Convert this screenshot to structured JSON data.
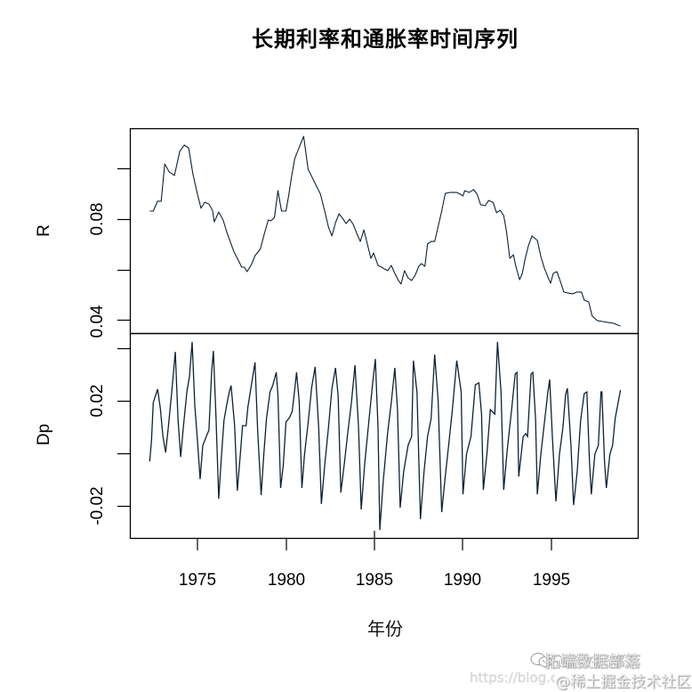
{
  "chart_data": {
    "type": "line",
    "title": "长期利率和通胀率时间序列",
    "xlabel": "年份",
    "x_ticks": [
      1975,
      1980,
      1985,
      1990,
      1995
    ],
    "x_range": [
      1971.3,
      1999.9
    ],
    "panels": [
      {
        "name": "R",
        "ylabel": "R",
        "y_ticks": [
          "0.04",
          "0.08"
        ],
        "y_minor_ticks": [
          0.04,
          0.06,
          0.08,
          0.1
        ],
        "ylim": [
          0.0345,
          0.1155
        ],
        "points": [
          [
            1972.3,
            0.0832
          ],
          [
            1972.5,
            0.0832
          ],
          [
            1972.75,
            0.0871
          ],
          [
            1972.95,
            0.0871
          ],
          [
            1973.15,
            0.1019
          ],
          [
            1973.4,
            0.0988
          ],
          [
            1973.7,
            0.0973
          ],
          [
            1974.0,
            0.1069
          ],
          [
            1974.25,
            0.1094
          ],
          [
            1974.5,
            0.1083
          ],
          [
            1974.75,
            0.0977
          ],
          [
            1975.0,
            0.0899
          ],
          [
            1975.2,
            0.0843
          ],
          [
            1975.4,
            0.0867
          ],
          [
            1975.65,
            0.086
          ],
          [
            1975.85,
            0.0835
          ],
          [
            1975.95,
            0.0789
          ],
          [
            1976.2,
            0.0828
          ],
          [
            1976.45,
            0.0796
          ],
          [
            1976.65,
            0.075
          ],
          [
            1976.85,
            0.0711
          ],
          [
            1977.05,
            0.0672
          ],
          [
            1977.3,
            0.0637
          ],
          [
            1977.5,
            0.0609
          ],
          [
            1977.65,
            0.0609
          ],
          [
            1977.8,
            0.0591
          ],
          [
            1978.05,
            0.0619
          ],
          [
            1978.25,
            0.0655
          ],
          [
            1978.55,
            0.068
          ],
          [
            1978.8,
            0.0747
          ],
          [
            1979.0,
            0.0796
          ],
          [
            1979.15,
            0.0793
          ],
          [
            1979.35,
            0.0807
          ],
          [
            1979.55,
            0.0913
          ],
          [
            1979.75,
            0.0832
          ],
          [
            1980.0,
            0.0832
          ],
          [
            1980.15,
            0.0892
          ],
          [
            1980.3,
            0.0963
          ],
          [
            1980.5,
            0.1041
          ],
          [
            1980.8,
            0.1094
          ],
          [
            1981.0,
            0.1129
          ],
          [
            1981.25,
            0.0998
          ],
          [
            1981.5,
            0.0963
          ],
          [
            1981.75,
            0.0927
          ],
          [
            1981.95,
            0.0899
          ],
          [
            1982.2,
            0.0828
          ],
          [
            1982.4,
            0.0768
          ],
          [
            1982.6,
            0.0733
          ],
          [
            1982.8,
            0.0786
          ],
          [
            1983.0,
            0.0821
          ],
          [
            1983.2,
            0.0803
          ],
          [
            1983.4,
            0.0782
          ],
          [
            1983.6,
            0.08
          ],
          [
            1983.8,
            0.0779
          ],
          [
            1984.0,
            0.0743
          ],
          [
            1984.2,
            0.0711
          ],
          [
            1984.4,
            0.0757
          ],
          [
            1984.6,
            0.0701
          ],
          [
            1984.8,
            0.0644
          ],
          [
            1984.95,
            0.0665
          ],
          [
            1985.2,
            0.0616
          ],
          [
            1985.4,
            0.0609
          ],
          [
            1985.55,
            0.0602
          ],
          [
            1985.75,
            0.0595
          ],
          [
            1985.95,
            0.0616
          ],
          [
            1986.15,
            0.0584
          ],
          [
            1986.35,
            0.0556
          ],
          [
            1986.5,
            0.0542
          ],
          [
            1986.7,
            0.0595
          ],
          [
            1986.9,
            0.0566
          ],
          [
            1987.1,
            0.0556
          ],
          [
            1987.3,
            0.0577
          ],
          [
            1987.5,
            0.0612
          ],
          [
            1987.65,
            0.0623
          ],
          [
            1987.85,
            0.0612
          ],
          [
            1988.0,
            0.0701
          ],
          [
            1988.2,
            0.0711
          ],
          [
            1988.4,
            0.0711
          ],
          [
            1988.6,
            0.0771
          ],
          [
            1988.8,
            0.0832
          ],
          [
            1989.0,
            0.0902
          ],
          [
            1989.25,
            0.0906
          ],
          [
            1989.45,
            0.0906
          ],
          [
            1989.65,
            0.0906
          ],
          [
            1989.85,
            0.0899
          ],
          [
            1990.0,
            0.0892
          ],
          [
            1990.1,
            0.0913
          ],
          [
            1990.35,
            0.0906
          ],
          [
            1990.6,
            0.0917
          ],
          [
            1990.8,
            0.0899
          ],
          [
            1991.0,
            0.0857
          ],
          [
            1991.25,
            0.0853
          ],
          [
            1991.45,
            0.0874
          ],
          [
            1991.7,
            0.0867
          ],
          [
            1991.9,
            0.0825
          ],
          [
            1992.1,
            0.0835
          ],
          [
            1992.3,
            0.0814
          ],
          [
            1992.45,
            0.0754
          ],
          [
            1992.65,
            0.0644
          ],
          [
            1992.85,
            0.0658
          ],
          [
            1993.0,
            0.0609
          ],
          [
            1993.2,
            0.0559
          ],
          [
            1993.35,
            0.0584
          ],
          [
            1993.5,
            0.0637
          ],
          [
            1993.7,
            0.0694
          ],
          [
            1993.9,
            0.0733
          ],
          [
            1994.2,
            0.0715
          ],
          [
            1994.4,
            0.0651
          ],
          [
            1994.6,
            0.0605
          ],
          [
            1994.8,
            0.057
          ],
          [
            1994.95,
            0.0545
          ],
          [
            1995.1,
            0.0584
          ],
          [
            1995.3,
            0.0591
          ],
          [
            1995.45,
            0.0563
          ],
          [
            1995.7,
            0.051
          ],
          [
            1995.95,
            0.0506
          ],
          [
            1996.2,
            0.0503
          ],
          [
            1996.45,
            0.051
          ],
          [
            1996.7,
            0.051
          ],
          [
            1996.85,
            0.0478
          ],
          [
            1997.1,
            0.0471
          ],
          [
            1997.3,
            0.0414
          ],
          [
            1997.6,
            0.0396
          ],
          [
            1997.9,
            0.0393
          ],
          [
            1998.2,
            0.0389
          ],
          [
            1998.5,
            0.0386
          ],
          [
            1998.9,
            0.0375
          ]
        ]
      },
      {
        "name": "Dp",
        "ylabel": "Dp",
        "y_ticks": [
          "-0.02",
          "0.02"
        ],
        "y_minor_ticks": [
          -0.02,
          0.0,
          0.02,
          0.04
        ],
        "ylim": [
          -0.0324,
          0.0454
        ],
        "points": [
          [
            1972.3,
            -0.0031
          ],
          [
            1972.4,
            0.0047
          ],
          [
            1972.5,
            0.0193
          ],
          [
            1972.6,
            0.0213
          ],
          [
            1972.75,
            0.0244
          ],
          [
            1972.9,
            0.0173
          ],
          [
            1973.05,
            0.0064
          ],
          [
            1973.2,
            0.0003
          ],
          [
            1973.35,
            0.0098
          ],
          [
            1973.55,
            0.0234
          ],
          [
            1973.75,
            0.0386
          ],
          [
            1973.9,
            0.0132
          ],
          [
            1974.05,
            -0.0014
          ],
          [
            1974.2,
            0.0098
          ],
          [
            1974.4,
            0.0234
          ],
          [
            1974.55,
            0.0292
          ],
          [
            1974.7,
            0.0424
          ],
          [
            1974.85,
            0.0183
          ],
          [
            1975.0,
            0.0047
          ],
          [
            1975.15,
            -0.0098
          ],
          [
            1975.3,
            0.003
          ],
          [
            1975.5,
            0.0064
          ],
          [
            1975.65,
            0.0088
          ],
          [
            1975.8,
            0.0308
          ],
          [
            1975.9,
            0.039
          ],
          [
            1976.05,
            0.0132
          ],
          [
            1976.2,
            -0.0173
          ],
          [
            1976.35,
            -0.0014
          ],
          [
            1976.5,
            0.0125
          ],
          [
            1976.65,
            0.0183
          ],
          [
            1976.8,
            0.0234
          ],
          [
            1976.9,
            0.0258
          ],
          [
            1977.1,
            0.0105
          ],
          [
            1977.25,
            -0.0142
          ],
          [
            1977.4,
            -0.002
          ],
          [
            1977.55,
            0.0105
          ],
          [
            1977.75,
            0.0105
          ],
          [
            1977.85,
            0.0176
          ],
          [
            1978.05,
            0.0261
          ],
          [
            1978.25,
            0.0346
          ],
          [
            1978.4,
            0.0085
          ],
          [
            1978.6,
            -0.0159
          ],
          [
            1978.75,
            -0.0003
          ],
          [
            1978.9,
            0.0132
          ],
          [
            1979.1,
            0.0234
          ],
          [
            1979.25,
            0.0258
          ],
          [
            1979.45,
            0.0308
          ],
          [
            1979.55,
            0.022
          ],
          [
            1979.7,
            -0.0132
          ],
          [
            1979.85,
            -0.0044
          ],
          [
            1980.0,
            0.0119
          ],
          [
            1980.2,
            0.0136
          ],
          [
            1980.35,
            0.0159
          ],
          [
            1980.45,
            0.0217
          ],
          [
            1980.6,
            0.0308
          ],
          [
            1980.75,
            0.0197
          ],
          [
            1980.9,
            -0.0132
          ],
          [
            1981.05,
            -0.0003
          ],
          [
            1981.25,
            0.0115
          ],
          [
            1981.45,
            0.0251
          ],
          [
            1981.65,
            0.0329
          ],
          [
            1981.85,
            0.0098
          ],
          [
            1982.0,
            -0.0193
          ],
          [
            1982.2,
            -0.0037
          ],
          [
            1982.4,
            0.0098
          ],
          [
            1982.6,
            0.0247
          ],
          [
            1982.8,
            0.0325
          ],
          [
            1982.95,
            0.0217
          ],
          [
            1983.1,
            -0.0149
          ],
          [
            1983.3,
            -0.0037
          ],
          [
            1983.5,
            0.0081
          ],
          [
            1983.7,
            0.0193
          ],
          [
            1983.9,
            0.0336
          ],
          [
            1984.1,
            0.0098
          ],
          [
            1984.25,
            -0.0214
          ],
          [
            1984.45,
            -0.0037
          ],
          [
            1984.7,
            0.0132
          ],
          [
            1984.9,
            0.0268
          ],
          [
            1985.05,
            0.0359
          ],
          [
            1985.2,
            0.0098
          ],
          [
            1985.3,
            -0.0292
          ],
          [
            1985.5,
            -0.0105
          ],
          [
            1985.75,
            0.0081
          ],
          [
            1985.95,
            0.0193
          ],
          [
            1986.15,
            0.0325
          ],
          [
            1986.3,
            0.0166
          ],
          [
            1986.45,
            -0.0207
          ],
          [
            1986.65,
            -0.0071
          ],
          [
            1986.9,
            0.003
          ],
          [
            1987.1,
            0.0064
          ],
          [
            1987.2,
            0.0353
          ],
          [
            1987.4,
            0.0234
          ],
          [
            1987.6,
            -0.0251
          ],
          [
            1987.8,
            -0.0071
          ],
          [
            1988.0,
            0.0064
          ],
          [
            1988.2,
            0.0132
          ],
          [
            1988.4,
            0.0376
          ],
          [
            1988.6,
            0.02
          ],
          [
            1988.8,
            -0.0224
          ],
          [
            1989.0,
            -0.0088
          ],
          [
            1989.2,
            0.0037
          ],
          [
            1989.4,
            0.0166
          ],
          [
            1989.65,
            0.0353
          ],
          [
            1989.9,
            0.0234
          ],
          [
            1990.0,
            -0.0156
          ],
          [
            1990.2,
            -0.0003
          ],
          [
            1990.45,
            0.0064
          ],
          [
            1990.7,
            0.0261
          ],
          [
            1990.9,
            0.0268
          ],
          [
            1991.05,
            0.0149
          ],
          [
            1991.15,
            -0.0139
          ],
          [
            1991.35,
            -0.0003
          ],
          [
            1991.55,
            0.0166
          ],
          [
            1991.7,
            0.0156
          ],
          [
            1991.8,
            0.0149
          ],
          [
            1991.95,
            0.0424
          ],
          [
            1992.15,
            0.0234
          ],
          [
            1992.3,
            -0.0139
          ],
          [
            1992.5,
            0.0014
          ],
          [
            1992.75,
            0.0166
          ],
          [
            1992.95,
            0.0302
          ],
          [
            1993.05,
            0.0308
          ],
          [
            1993.15,
            -0.0088
          ],
          [
            1993.4,
            0.0064
          ],
          [
            1993.55,
            0.0075
          ],
          [
            1993.65,
            0.0064
          ],
          [
            1993.85,
            0.0302
          ],
          [
            1993.95,
            0.0308
          ],
          [
            1994.1,
            0.0132
          ],
          [
            1994.2,
            -0.0156
          ],
          [
            1994.4,
            -0.0003
          ],
          [
            1994.6,
            0.0115
          ],
          [
            1994.8,
            0.0234
          ],
          [
            1994.9,
            0.0281
          ],
          [
            1995.05,
            0.0064
          ],
          [
            1995.25,
            -0.0183
          ],
          [
            1995.45,
            -0.0003
          ],
          [
            1995.65,
            0.0098
          ],
          [
            1995.8,
            0.0224
          ],
          [
            1995.9,
            0.0247
          ],
          [
            1996.1,
            0.003
          ],
          [
            1996.25,
            -0.0197
          ],
          [
            1996.45,
            -0.0071
          ],
          [
            1996.65,
            0.0125
          ],
          [
            1996.85,
            0.0227
          ],
          [
            1997.0,
            0.0234
          ],
          [
            1997.15,
            -0.0037
          ],
          [
            1997.25,
            -0.0156
          ],
          [
            1997.45,
            -0.0003
          ],
          [
            1997.65,
            0.003
          ],
          [
            1997.8,
            0.0234
          ],
          [
            1997.85,
            0.0234
          ],
          [
            1998.0,
            -0.0037
          ],
          [
            1998.1,
            -0.0132
          ],
          [
            1998.3,
            -0.0003
          ],
          [
            1998.45,
            0.003
          ],
          [
            1998.6,
            0.0132
          ],
          [
            1998.9,
            0.0241
          ]
        ]
      }
    ],
    "line_color": "#0d2233",
    "grid": false,
    "legend": null
  },
  "labels": {
    "title": "长期利率和通胀率时间序列",
    "xlabel": "年份",
    "r_label": "R",
    "dp_label": "Dp",
    "r_tick_low": "0.04",
    "r_tick_high": "0.08",
    "dp_tick_low": "-0.02",
    "dp_tick_high": "0.02",
    "x_ticks": [
      "1975",
      "1980",
      "1985",
      "1990",
      "1995"
    ]
  },
  "watermark": {
    "brand": "拓端数据部落",
    "url": "https://blog.cs",
    "community": "@稀土掘金技术社区"
  }
}
